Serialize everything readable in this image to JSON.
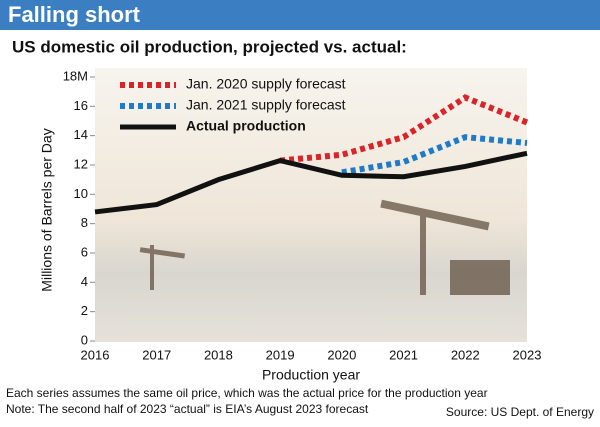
{
  "chart_data": {
    "type": "line",
    "title": "Falling short",
    "subtitle": "US domestic oil production, projected vs. actual:",
    "y_label": "Millions of Barrels per Day",
    "x_label": "Production year",
    "notes": [
      "Each series assumes the same oil price, which was the actual price for the production year",
      "Note: The second half of 2023 “actual” is EIA’s August 2023 forecast"
    ],
    "source": "Source: US Dept. of Energy",
    "categories": [
      "2016",
      "2017",
      "2018",
      "2019",
      "2020",
      "2021",
      "2022",
      "2023"
    ],
    "series": [
      {
        "name": "Jan. 2020 supply forecast",
        "color": "#d9252a",
        "dashed": true,
        "values": [
          null,
          null,
          null,
          12.3,
          12.7,
          13.9,
          16.6,
          14.9
        ]
      },
      {
        "name": "Jan. 2021 supply forecast",
        "color": "#1f7bc8",
        "dashed": true,
        "values": [
          null,
          null,
          null,
          null,
          11.5,
          12.2,
          13.9,
          13.5
        ]
      },
      {
        "name": "Actual production",
        "color": "#111111",
        "dashed": false,
        "values": [
          8.8,
          9.3,
          11.0,
          12.3,
          11.3,
          11.2,
          11.9,
          12.8
        ]
      }
    ],
    "ylim": [
      0,
      18
    ],
    "yticks": [
      0,
      2,
      4,
      6,
      8,
      10,
      12,
      14,
      16,
      {
        "value": 18,
        "label": "18M"
      }
    ],
    "legend": "top-left"
  }
}
